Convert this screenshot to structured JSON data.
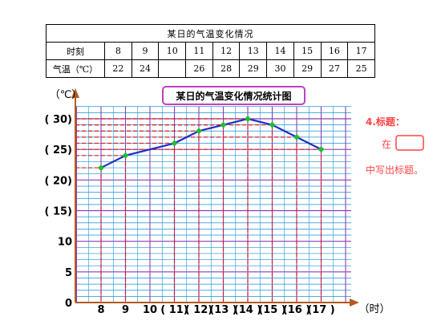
{
  "table": {
    "title": "某日的气温变化情况",
    "row1_label": "时刻",
    "row2_label": "气温（℃）",
    "times": [
      "8",
      "9",
      "10",
      "11",
      "12",
      "13",
      "14",
      "15",
      "16",
      "17"
    ],
    "temps": [
      "22",
      "24",
      "",
      "26",
      "28",
      "29",
      "30",
      "29",
      "27",
      "25"
    ]
  },
  "chart_data": {
    "type": "line",
    "title": "某日的气温变化情况统计图",
    "ylabel": "（℃）",
    "xlabel": "（时）",
    "ylim": [
      0,
      32
    ],
    "x": [
      8,
      9,
      10,
      11,
      12,
      13,
      14,
      15,
      16,
      17
    ],
    "x_tick_labels": [
      "8",
      "9",
      "10",
      "( 11)",
      "( 12)",
      "(13 )",
      "(14 )",
      "(15 )",
      "(16 )",
      "(17 )"
    ],
    "y_ticks": [
      0,
      5,
      10,
      15,
      20,
      25,
      30
    ],
    "y_tick_labels": [
      "0",
      "5",
      "10",
      "( 15)",
      "( 20)",
      "( 25)",
      "( 30)"
    ],
    "series": [
      {
        "x": [
          8,
          9,
          11,
          12,
          13,
          14,
          15,
          16,
          17
        ],
        "values": [
          22,
          24,
          26,
          28,
          29,
          30,
          29,
          27,
          25
        ],
        "line_color": "#1f2fbf",
        "marker_color": "#22bb33"
      }
    ],
    "grid": true,
    "colors": {
      "grid": "#1c8fd8",
      "grid_major": "#8b3fb4",
      "guide": "#dd1f1f",
      "axis": "#b35a1f"
    }
  },
  "notes": {
    "heading": "4.标题：",
    "line1": "在",
    "line2": "中写出标题。"
  }
}
